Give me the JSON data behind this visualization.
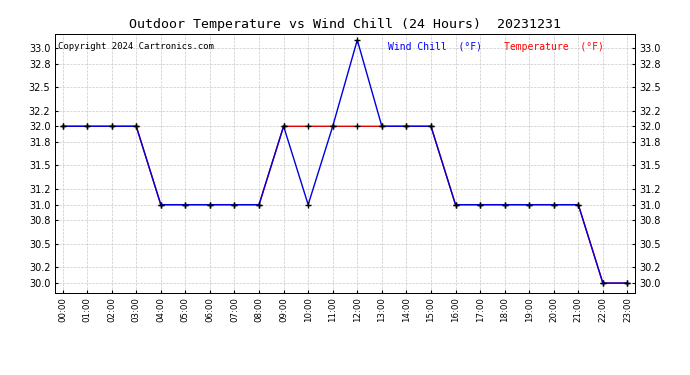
{
  "title": "Outdoor Temperature vs Wind Chill (24 Hours)  20231231",
  "copyright": "Copyright 2024 Cartronics.com",
  "legend_wind_chill": "Wind Chill  (°F)",
  "legend_temperature": "Temperature  (°F)",
  "hours": [
    0,
    1,
    2,
    3,
    4,
    5,
    6,
    7,
    8,
    9,
    10,
    11,
    12,
    13,
    14,
    15,
    16,
    17,
    18,
    19,
    20,
    21,
    22,
    23
  ],
  "temperature": [
    32.0,
    32.0,
    32.0,
    32.0,
    31.0,
    31.0,
    31.0,
    31.0,
    31.0,
    32.0,
    32.0,
    32.0,
    32.0,
    32.0,
    32.0,
    32.0,
    31.0,
    31.0,
    31.0,
    31.0,
    31.0,
    31.0,
    30.0,
    30.0
  ],
  "wind_chill": [
    32.0,
    32.0,
    32.0,
    32.0,
    31.0,
    31.0,
    31.0,
    31.0,
    31.0,
    32.0,
    31.0,
    32.0,
    33.1,
    32.0,
    32.0,
    32.0,
    31.0,
    31.0,
    31.0,
    31.0,
    31.0,
    31.0,
    30.0,
    30.0
  ],
  "ylim_min": 29.88,
  "ylim_max": 33.18,
  "yticks": [
    30.0,
    30.2,
    30.5,
    30.8,
    31.0,
    31.2,
    31.5,
    31.8,
    32.0,
    32.2,
    32.5,
    32.8,
    33.0
  ],
  "bg_color": "#ffffff",
  "grid_color": "#bbbbbb",
  "temp_color": "#dd0000",
  "wind_chill_color": "#0000dd",
  "title_color": "#000000",
  "copyright_color": "#000000",
  "legend_wind_color": "#0000ff",
  "legend_temp_color": "#ff0000",
  "figwidth": 6.9,
  "figheight": 3.75,
  "dpi": 100
}
